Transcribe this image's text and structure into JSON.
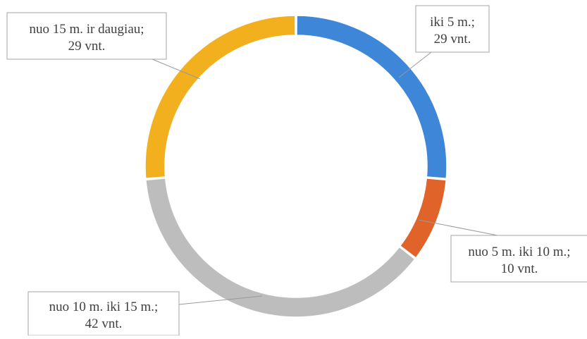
{
  "chart_data": {
    "type": "donut",
    "categories": [
      "iki 5 m.",
      "nuo 5 m. iki 10 m.",
      "nuo 10 m. iki 15 m.",
      "nuo 15 m. ir daugiau"
    ],
    "values": [
      29,
      10,
      42,
      29
    ],
    "unit": "vnt.",
    "colors": [
      "#3E86D8",
      "#E0632A",
      "#BDBDBD",
      "#F2B01E"
    ],
    "data_labels": [
      {
        "line1": "iki 5 m.;",
        "line2": "29 vnt."
      },
      {
        "line1": "nuo 5 m. iki 10 m.;",
        "line2": "10 vnt."
      },
      {
        "line1": "nuo 10 m. iki 15 m.;",
        "line2": "42 vnt."
      },
      {
        "line1": "nuo 15 m. ir daugiau;",
        "line2": "29 vnt."
      }
    ],
    "legend": "none"
  }
}
